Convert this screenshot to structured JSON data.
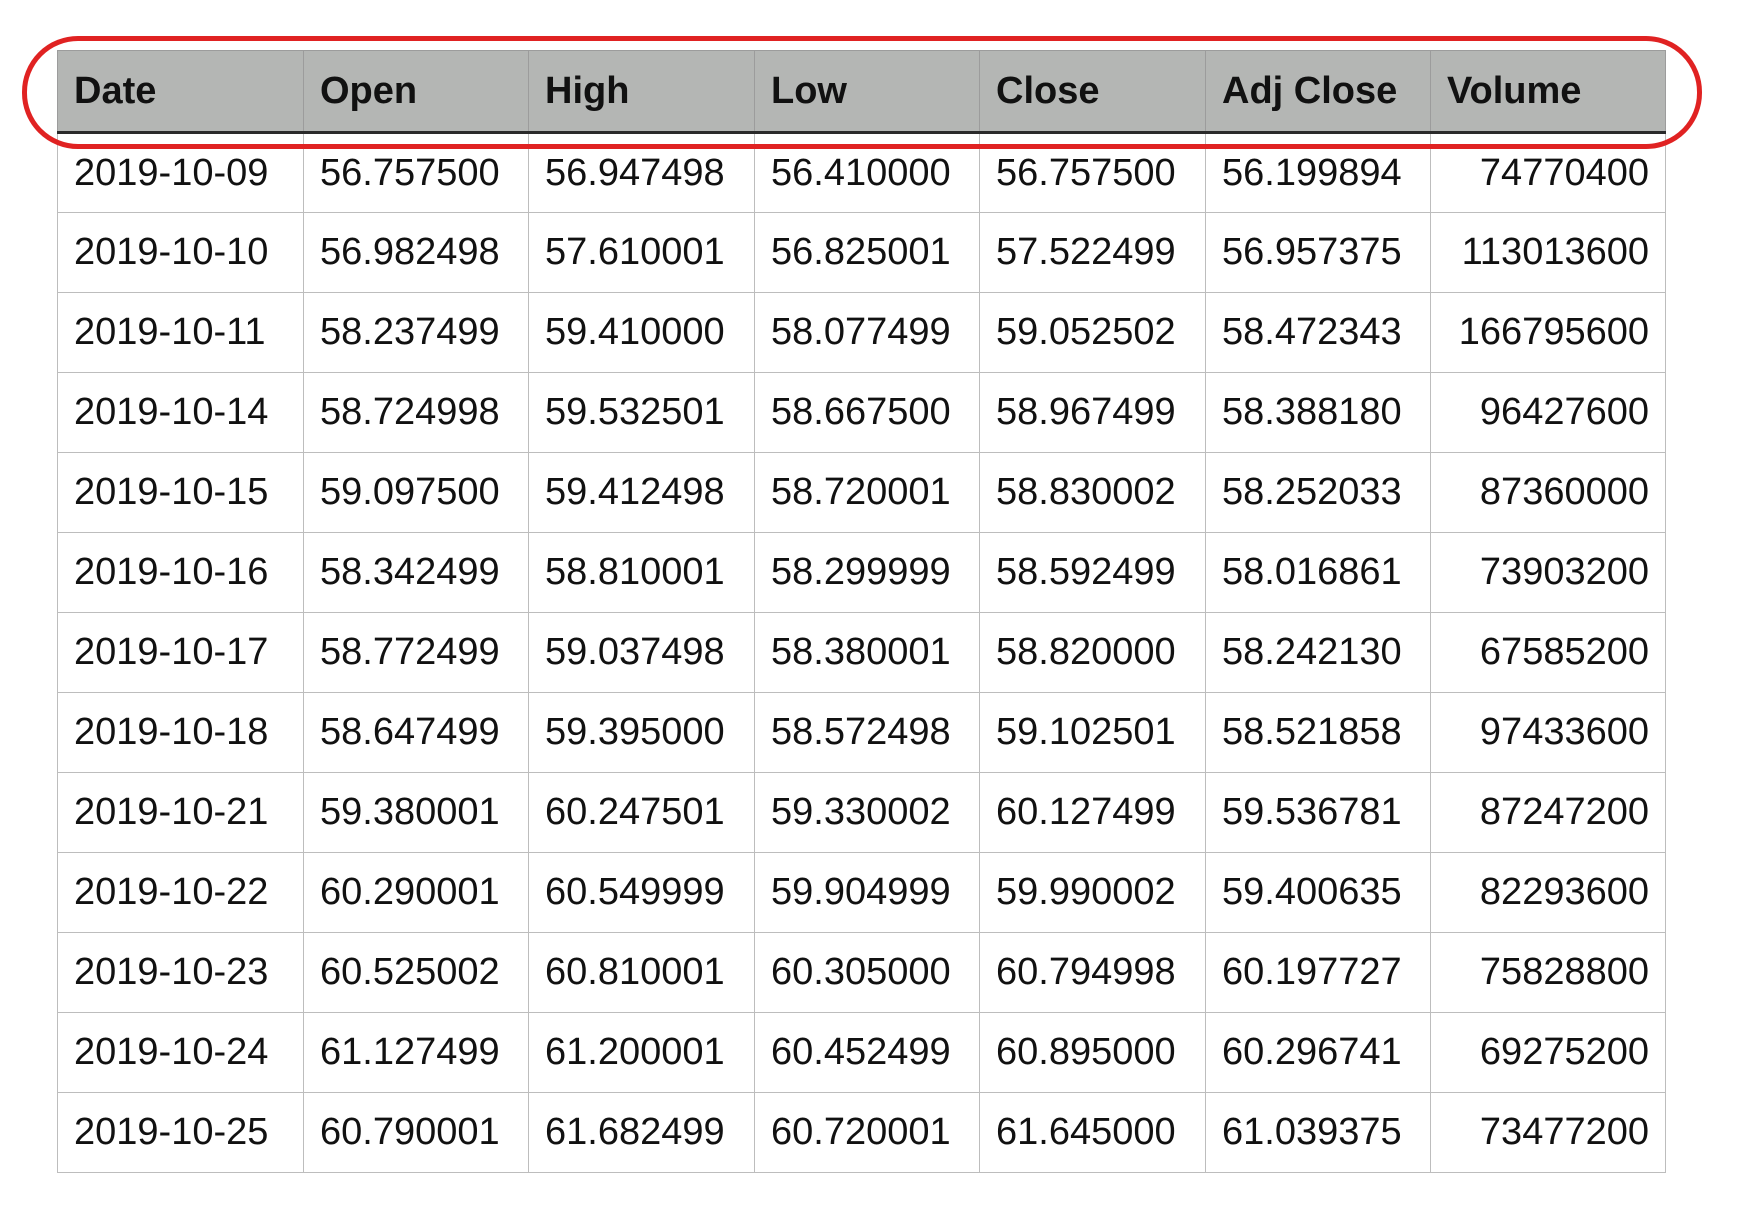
{
  "table": {
    "columns": [
      "Date",
      "Open",
      "High",
      "Low",
      "Close",
      "Adj Close",
      "Volume"
    ],
    "rows": [
      [
        "2019-10-09",
        "56.757500",
        "56.947498",
        "56.410000",
        "56.757500",
        "56.199894",
        "74770400"
      ],
      [
        "2019-10-10",
        "56.982498",
        "57.610001",
        "56.825001",
        "57.522499",
        "56.957375",
        "113013600"
      ],
      [
        "2019-10-11",
        "58.237499",
        "59.410000",
        "58.077499",
        "59.052502",
        "58.472343",
        "166795600"
      ],
      [
        "2019-10-14",
        "58.724998",
        "59.532501",
        "58.667500",
        "58.967499",
        "58.388180",
        "96427600"
      ],
      [
        "2019-10-15",
        "59.097500",
        "59.412498",
        "58.720001",
        "58.830002",
        "58.252033",
        "87360000"
      ],
      [
        "2019-10-16",
        "58.342499",
        "58.810001",
        "58.299999",
        "58.592499",
        "58.016861",
        "73903200"
      ],
      [
        "2019-10-17",
        "58.772499",
        "59.037498",
        "58.380001",
        "58.820000",
        "58.242130",
        "67585200"
      ],
      [
        "2019-10-18",
        "58.647499",
        "59.395000",
        "58.572498",
        "59.102501",
        "58.521858",
        "97433600"
      ],
      [
        "2019-10-21",
        "59.380001",
        "60.247501",
        "59.330002",
        "60.127499",
        "59.536781",
        "87247200"
      ],
      [
        "2019-10-22",
        "60.290001",
        "60.549999",
        "59.904999",
        "59.990002",
        "59.400635",
        "82293600"
      ],
      [
        "2019-10-23",
        "60.525002",
        "60.810001",
        "60.305000",
        "60.794998",
        "60.197727",
        "75828800"
      ],
      [
        "2019-10-24",
        "61.127499",
        "61.200001",
        "60.452499",
        "60.895000",
        "60.296741",
        "69275200"
      ],
      [
        "2019-10-25",
        "60.790001",
        "61.682499",
        "60.720001",
        "61.645000",
        "61.039375",
        "73477200"
      ]
    ]
  },
  "colors": {
    "header_background": "#b4b6b4",
    "highlight_outline": "#e02222"
  }
}
